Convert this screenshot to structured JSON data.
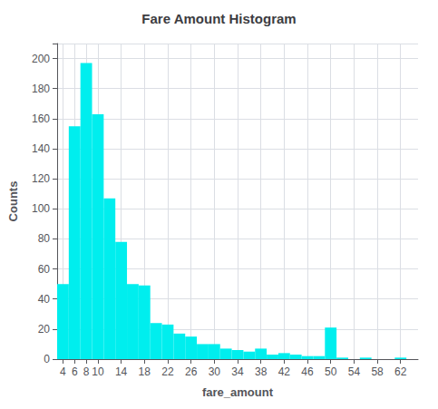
{
  "chart_data": {
    "type": "histogram",
    "title": "Fare Amount Histogram",
    "xlabel": "fare_amount",
    "ylabel": "Counts",
    "color": "#00EEEE",
    "bins": [
      3,
      5,
      7,
      9,
      11,
      13,
      15,
      17,
      19,
      21,
      23,
      25,
      27,
      29,
      31,
      33,
      35,
      37,
      39,
      41,
      43,
      45,
      47,
      49,
      51,
      53,
      55,
      57,
      59,
      61,
      63
    ],
    "counts": [
      50,
      155,
      197,
      163,
      107,
      78,
      50,
      49,
      24,
      23,
      17,
      15,
      10,
      10,
      7,
      6,
      5,
      7,
      3,
      4,
      3,
      2,
      2,
      21,
      1,
      0,
      1,
      0,
      0,
      1
    ],
    "xlim": [
      3,
      65
    ],
    "xticks": [
      4,
      6,
      8,
      10,
      14,
      18,
      22,
      26,
      30,
      34,
      38,
      42,
      46,
      50,
      54,
      58,
      62
    ],
    "ylim": [
      0,
      210
    ],
    "yticks": [
      0,
      20,
      40,
      60,
      80,
      100,
      120,
      140,
      160,
      180,
      200
    ],
    "grid": true
  }
}
